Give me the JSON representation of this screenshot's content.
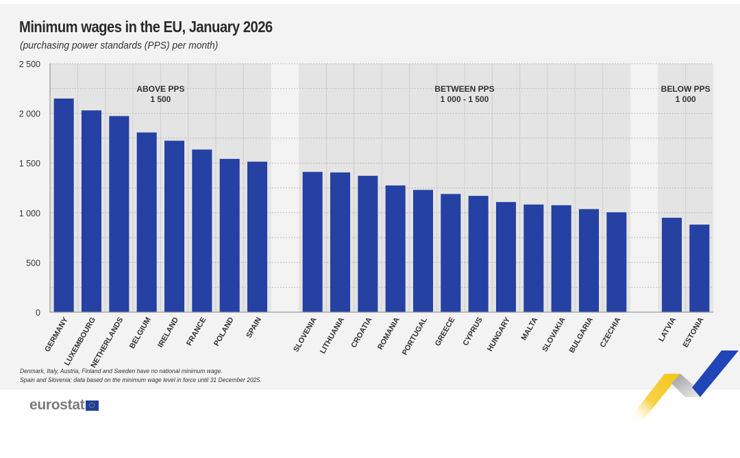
{
  "header": {
    "title": "Minimum wages in the EU, January 2026",
    "subtitle": "(purchasing power standards (PPS) per month)"
  },
  "footer": {
    "notes": [
      "Denmark, Italy, Austria, Finland and Sweden have no national minimum wage.",
      "Spain and Slovenia: data based on the minimum wage level in force until 31 December 2025."
    ],
    "logo_text": "eurostat",
    "logo_icon": "eu-flag-icon"
  },
  "colors": {
    "bar": "#2541a3",
    "group_shade": "#e4e4e4",
    "background": "#f3f3f3",
    "accent_yellow": "#f5c518",
    "accent_blue": "#1f45b8"
  },
  "chart_data": {
    "type": "bar",
    "title": "Minimum wages in the EU, January 2026",
    "subtitle": "(purchasing power standards (PPS) per month)",
    "xlabel": "",
    "ylabel": "PPS per month",
    "ylim": [
      0,
      2500
    ],
    "yticks": [
      0,
      500,
      1000,
      1500,
      2000,
      2500
    ],
    "ytick_labels": [
      "0",
      "500",
      "1 000",
      "1 500",
      "2 000",
      "2 500"
    ],
    "grid": true,
    "legend": "none",
    "groups": [
      {
        "label_line1": "ABOVE PPS",
        "label_line2": "1 500",
        "categories": [
          "GERMANY",
          "LUXEMBOURG",
          "NETHERLANDS",
          "BELGIUM",
          "IRELAND",
          "FRANCE",
          "POLAND",
          "SPAIN"
        ],
        "values": [
          2149,
          2030,
          1973,
          1808,
          1725,
          1636,
          1542,
          1514
        ]
      },
      {
        "label_line1": "BETWEEN PPS",
        "label_line2": "1 000 - 1 500",
        "categories": [
          "SLOVENIA",
          "LITHUANIA",
          "CROATIA",
          "ROMANIA",
          "PORTUGAL",
          "GREECE",
          "CYPRUS",
          "HUNGARY",
          "MALTA",
          "SLOVAKIA",
          "BULGARIA",
          "CZECHIA"
        ],
        "values": [
          1411,
          1406,
          1372,
          1275,
          1230,
          1189,
          1170,
          1108,
          1083,
          1076,
          1037,
          1005
        ]
      },
      {
        "label_line1": "BELOW PPS",
        "label_line2": "1 000",
        "categories": [
          "LATVIA",
          "ESTONIA"
        ],
        "values": [
          950,
          881
        ]
      }
    ]
  }
}
